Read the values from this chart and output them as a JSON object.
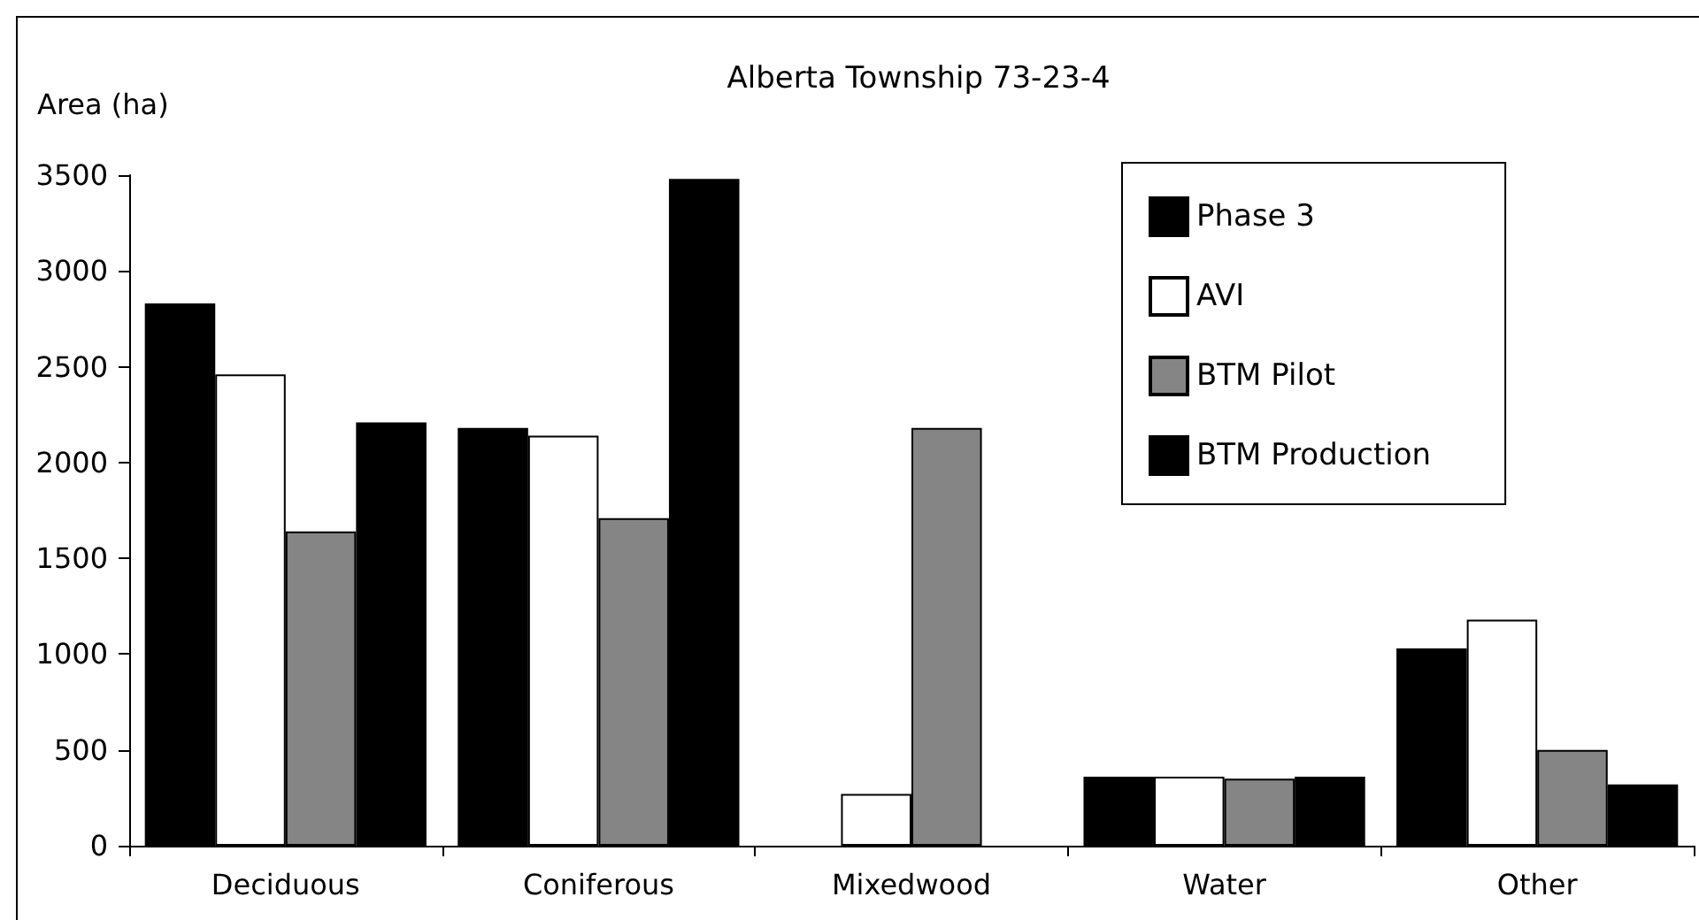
{
  "chart_data": {
    "type": "bar",
    "title": "Alberta Township 73-23-4",
    "ylabel": "Area (ha)",
    "categories": [
      "Deciduous",
      "Coniferous",
      "Mixedwood",
      "Water",
      "Other"
    ],
    "series": [
      {
        "name": "Phase 3",
        "color": "#000000",
        "values": [
          2830,
          2180,
          0,
          360,
          1030
        ]
      },
      {
        "name": "AVI",
        "color": "#ffffff",
        "values": [
          2460,
          2140,
          270,
          360,
          1180
        ]
      },
      {
        "name": "BTM Pilot",
        "color": "#858585",
        "values": [
          1640,
          1710,
          2180,
          350,
          500
        ]
      },
      {
        "name": "BTM Production",
        "color": "#000000",
        "values": [
          2210,
          3480,
          0,
          360,
          320
        ]
      }
    ],
    "ylim": [
      0,
      3500
    ],
    "yticks": [
      0,
      500,
      1000,
      1500,
      2000,
      2500,
      3000,
      3500
    ],
    "legend": "top right"
  }
}
